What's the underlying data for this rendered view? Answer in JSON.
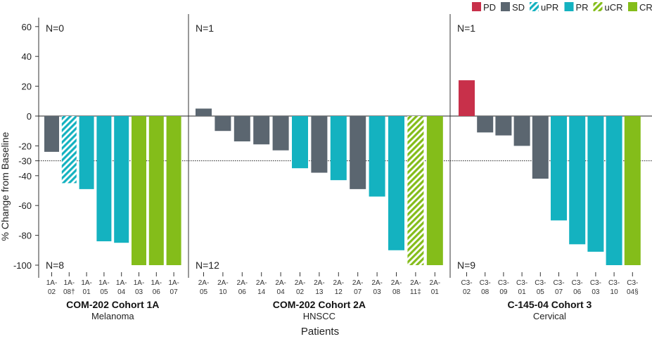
{
  "chart_data": {
    "type": "bar",
    "title": "",
    "xlabel": "Patients",
    "ylabel": "% Change from Baseline",
    "ylim": [
      -105,
      68
    ],
    "yticks": [
      60,
      40,
      20,
      0,
      -20,
      -30,
      -40,
      -60,
      -80,
      -100
    ],
    "reference_line": -30,
    "legend": [
      {
        "key": "PD",
        "label": "PD",
        "color": "#c8304a",
        "pattern": "solid"
      },
      {
        "key": "SD",
        "label": "SD",
        "color": "#5b6670",
        "pattern": "solid"
      },
      {
        "key": "uPR",
        "label": "uPR",
        "color": "#14b2c0",
        "pattern": "hatch"
      },
      {
        "key": "PR",
        "label": "PR",
        "color": "#14b2c0",
        "pattern": "solid"
      },
      {
        "key": "uCR",
        "label": "uCR",
        "color": "#84bd1a",
        "pattern": "hatch"
      },
      {
        "key": "CR",
        "label": "CR",
        "color": "#84bd1a",
        "pattern": "solid"
      }
    ],
    "legend_position": "top-right",
    "panels": [
      {
        "name": "COM-202 Cohort 1A",
        "subtitle": "Melanoma",
        "n_top": "N=0",
        "n_bottom": "N=8",
        "patients": [
          {
            "id": [
              "1A-",
              "02"
            ],
            "value": -24,
            "response": "SD"
          },
          {
            "id": [
              "1A-",
              "08†"
            ],
            "value": -45,
            "response": "uPR"
          },
          {
            "id": [
              "1A-",
              "01"
            ],
            "value": -49,
            "response": "PR"
          },
          {
            "id": [
              "1A-",
              "05"
            ],
            "value": -84,
            "response": "PR"
          },
          {
            "id": [
              "1A-",
              "04"
            ],
            "value": -85,
            "response": "PR"
          },
          {
            "id": [
              "1A-",
              "03"
            ],
            "value": -100,
            "response": "CR"
          },
          {
            "id": [
              "1A-",
              "06"
            ],
            "value": -100,
            "response": "CR"
          },
          {
            "id": [
              "1A-",
              "07"
            ],
            "value": -100,
            "response": "CR"
          }
        ]
      },
      {
        "name": "COM-202 Cohort 2A",
        "subtitle": "HNSCC",
        "n_top": "N=1",
        "n_bottom": "N=12",
        "patients": [
          {
            "id": [
              "2A-",
              "05"
            ],
            "value": 5,
            "response": "SD"
          },
          {
            "id": [
              "2A-",
              "10"
            ],
            "value": -10,
            "response": "SD"
          },
          {
            "id": [
              "2A-",
              "06"
            ],
            "value": -17,
            "response": "SD"
          },
          {
            "id": [
              "2A-",
              "14"
            ],
            "value": -19,
            "response": "SD"
          },
          {
            "id": [
              "2A-",
              "04"
            ],
            "value": -23,
            "response": "SD"
          },
          {
            "id": [
              "2A-",
              "02"
            ],
            "value": -35,
            "response": "PR"
          },
          {
            "id": [
              "2A-",
              "13"
            ],
            "value": -38,
            "response": "SD"
          },
          {
            "id": [
              "2A-",
              "12"
            ],
            "value": -43,
            "response": "PR"
          },
          {
            "id": [
              "2A-",
              "07"
            ],
            "value": -49,
            "response": "SD"
          },
          {
            "id": [
              "2A-",
              "03"
            ],
            "value": -54,
            "response": "PR"
          },
          {
            "id": [
              "2A-",
              "08"
            ],
            "value": -90,
            "response": "PR"
          },
          {
            "id": [
              "2A-",
              "11‡"
            ],
            "value": -100,
            "response": "uCR"
          },
          {
            "id": [
              "2A-",
              "01"
            ],
            "value": -100,
            "response": "CR"
          }
        ]
      },
      {
        "name": "C-145-04 Cohort 3",
        "subtitle": "Cervical",
        "n_top": "N=1",
        "n_bottom": "N=9",
        "patients": [
          {
            "id": [
              "C3-",
              "02"
            ],
            "value": 24,
            "response": "PD"
          },
          {
            "id": [
              "C3-",
              "08"
            ],
            "value": -11,
            "response": "SD"
          },
          {
            "id": [
              "C3-",
              "09"
            ],
            "value": -13,
            "response": "SD"
          },
          {
            "id": [
              "C3-",
              "01"
            ],
            "value": -20,
            "response": "SD"
          },
          {
            "id": [
              "C3-",
              "05"
            ],
            "value": -42,
            "response": "SD"
          },
          {
            "id": [
              "C3-",
              "07"
            ],
            "value": -70,
            "response": "PR"
          },
          {
            "id": [
              "C3-",
              "06"
            ],
            "value": -86,
            "response": "PR"
          },
          {
            "id": [
              "C3-",
              "03"
            ],
            "value": -91,
            "response": "PR"
          },
          {
            "id": [
              "C3-",
              "10"
            ],
            "value": -100,
            "response": "PR"
          },
          {
            "id": [
              "C3-",
              "04§"
            ],
            "value": -100,
            "response": "CR"
          }
        ]
      }
    ]
  }
}
